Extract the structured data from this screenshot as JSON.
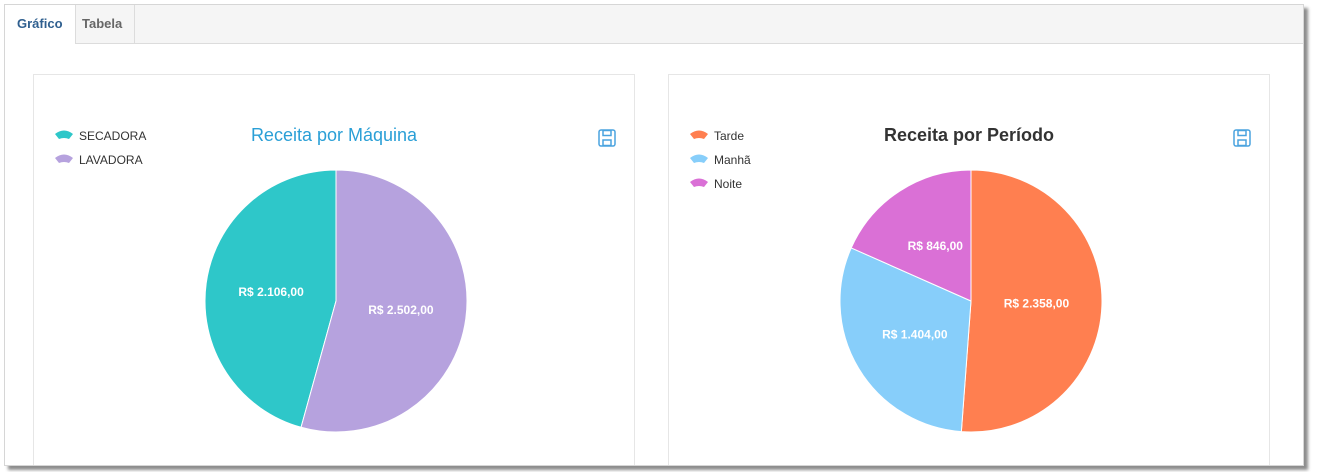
{
  "tabs": [
    {
      "label": "Gráfico",
      "active": true
    },
    {
      "label": "Tabela",
      "active": false
    }
  ],
  "icons": {
    "save": "floppy-save-icon"
  },
  "chart_data": [
    {
      "type": "pie",
      "title": "Receita por Máquina",
      "title_color": "#2a9fd6",
      "legend_position": "top-left",
      "slices": [
        {
          "name": "SECADORA",
          "value": 2106,
          "label": "R$ 2.106,00",
          "color": "#2ec7c9"
        },
        {
          "name": "LAVADORA",
          "value": 2502,
          "label": "R$ 2.502,00",
          "color": "#b6a2de"
        }
      ]
    },
    {
      "type": "pie",
      "title": "Receita por Período",
      "title_color": "#333333",
      "legend_position": "top-left",
      "slices": [
        {
          "name": "Tarde",
          "value": 2358,
          "label": "R$ 2.358,00",
          "color": "#ff7f50"
        },
        {
          "name": "Manhã",
          "value": 1404,
          "label": "R$ 1.404,00",
          "color": "#87cefa"
        },
        {
          "name": "Noite",
          "value": 846,
          "label": "R$ 846,00",
          "color": "#da70d6"
        }
      ]
    }
  ]
}
